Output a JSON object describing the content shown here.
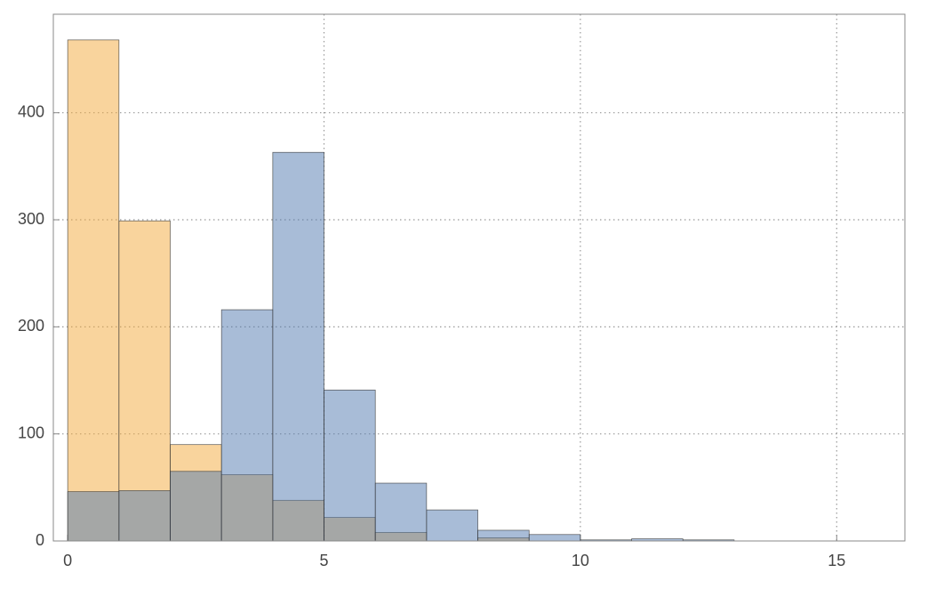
{
  "chart_data": {
    "type": "histogram",
    "bins": [
      0,
      1,
      2,
      3,
      4,
      5,
      6,
      7,
      8,
      9,
      10,
      11,
      12,
      13,
      14,
      15,
      16
    ],
    "series": [
      {
        "color": "#f4a93c",
        "values": [
          468,
          299,
          90,
          62,
          38,
          22,
          8,
          0,
          3,
          0,
          0,
          0,
          0,
          0,
          0,
          0
        ]
      },
      {
        "color": "#5279b0",
        "values": [
          46,
          47,
          65,
          216,
          363,
          141,
          54,
          29,
          10,
          6,
          1,
          2,
          1,
          0,
          0,
          0
        ]
      }
    ],
    "fill_opacity": 0.5,
    "xlim": [
      -0.28,
      16.33
    ],
    "ylim": [
      0,
      492
    ],
    "xticks": [
      0,
      5,
      10,
      15
    ],
    "yticks": [
      0,
      100,
      200,
      300,
      400
    ],
    "grid": true
  }
}
